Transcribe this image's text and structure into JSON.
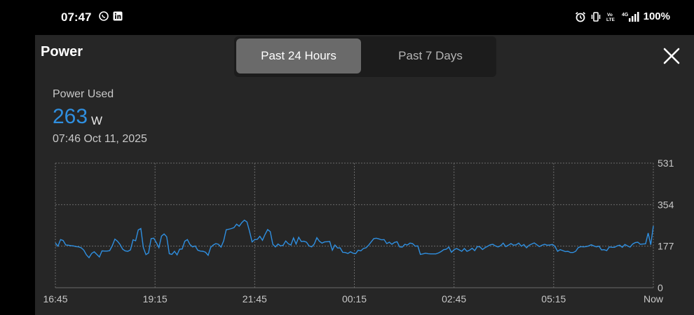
{
  "status_bar": {
    "time": "07:47",
    "left_icons": [
      "viber-icon",
      "linkedin-icon"
    ],
    "right_icons": [
      "alarm-icon",
      "vibrate-icon",
      "volte-icon",
      "4g-signal-icon"
    ],
    "volte_label": "Vo\nLTE",
    "network_label": "4G",
    "battery": "100%"
  },
  "panel": {
    "title": "Power",
    "tabs": [
      {
        "label": "Past 24 Hours",
        "active": true
      },
      {
        "label": "Past 7 Days",
        "active": false
      }
    ],
    "close_icon": "close-icon"
  },
  "metric": {
    "label": "Power Used",
    "value": "263",
    "unit": "W",
    "timestamp": "07:46  Oct 11, 2025"
  },
  "colors": {
    "accent": "#2f8fe0",
    "line": "#2f8fe0",
    "panel_bg": "#262626",
    "grid": "#6a6a6a"
  },
  "chart_data": {
    "type": "line",
    "x_tick_labels": [
      "16:45",
      "19:15",
      "21:45",
      "00:15",
      "02:45",
      "05:15",
      "Now"
    ],
    "y_tick_labels": [
      "531",
      "354",
      "177",
      "0"
    ],
    "ylim": [
      0,
      531
    ],
    "grid": true,
    "series": [
      {
        "values": [
          191,
          177,
          205,
          201,
          182,
          181,
          179,
          178,
          175,
          174,
          170,
          160,
          140,
          128,
          146,
          153,
          142,
          131,
          157,
          156,
          156,
          158,
          179,
          207,
          198,
          184,
          164,
          157,
          155,
          161,
          204,
          200,
          246,
          252,
          171,
          141,
          148,
          209,
          211,
          192,
          171,
          220,
          229,
          217,
          145,
          142,
          155,
          140,
          164,
          165,
          198,
          205,
          184,
          174,
          178,
          160,
          156,
          155,
          151,
          138,
          172,
          182,
          188,
          185,
          173,
          199,
          247,
          249,
          252,
          256,
          271,
          262,
          277,
          288,
          280,
          241,
          195,
          205,
          206,
          219,
          202,
          227,
          248,
          239,
          185,
          174,
          186,
          178,
          181,
          199,
          187,
          182,
          212,
          186,
          215,
          197,
          198,
          194,
          178,
          174,
          186,
          213,
          198,
          190,
          195,
          196,
          197,
          160,
          182,
          169,
          170,
          151,
          150,
          146,
          153,
          147,
          145,
          160,
          157,
          167,
          170,
          181,
          195,
          209,
          211,
          208,
          204,
          205,
          188,
          194,
          185,
          193,
          196,
          174,
          173,
          185,
          182,
          190,
          188,
          177,
          178,
          142,
          144,
          147,
          145,
          144,
          144,
          144,
          148,
          154,
          162,
          164,
          173,
          151,
          162,
          167,
          161,
          155,
          167,
          155,
          160,
          168,
          158,
          175,
          174,
          163,
          171,
          177,
          183,
          185,
          178,
          174,
          179,
          190,
          175,
          181,
          188,
          181,
          183,
          190,
          177,
          184,
          170,
          181,
          186,
          191,
          183,
          175,
          181,
          185,
          181,
          182,
          184,
          176,
          155,
          162,
          158,
          154,
          155,
          150,
          150,
          155,
          171,
          175,
          174,
          175,
          178,
          183,
          178,
          174,
          177,
          161,
          162,
          158,
          174,
          172,
          172,
          178,
          181,
          172,
          184,
          178,
          173,
          186,
          192,
          194,
          185,
          186,
          187,
          233,
          183,
          263
        ]
      }
    ]
  }
}
